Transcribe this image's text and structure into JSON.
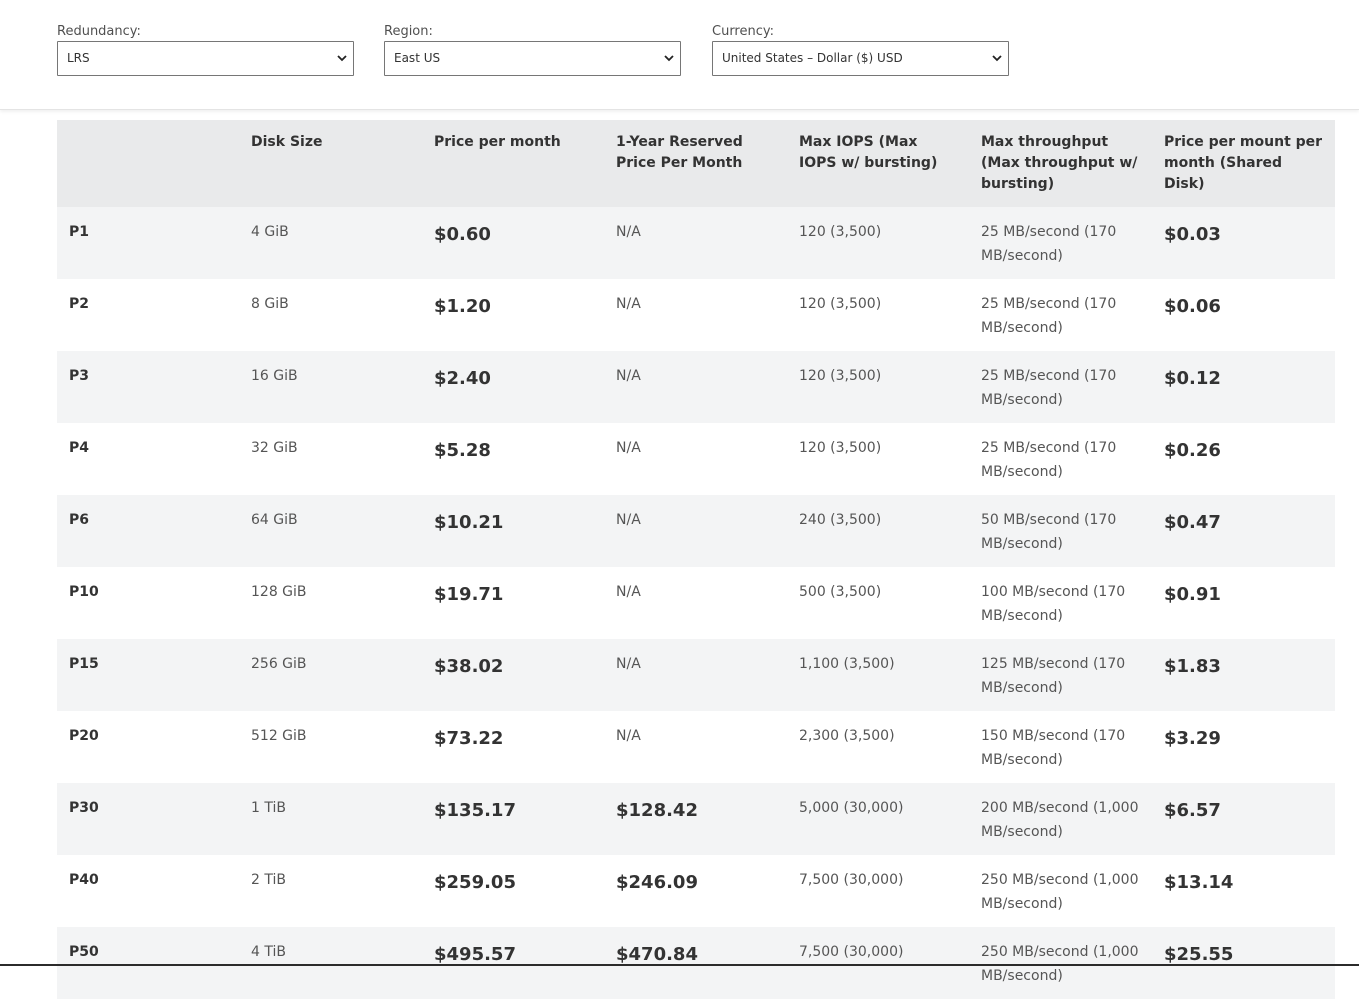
{
  "filters": {
    "redundancy": {
      "label": "Redundancy:",
      "value": "LRS"
    },
    "region": {
      "label": "Region:",
      "value": "East US"
    },
    "currency": {
      "label": "Currency:",
      "value": "United States – Dollar ($) USD"
    }
  },
  "table": {
    "headers": [
      "",
      "Disk Size",
      "Price per month",
      "1-Year Reserved Price Per Month",
      "Max IOPS (Max IOPS w/ bursting)",
      "Max throughput (Max throughput w/ bursting)",
      "Price per mount per month (Shared Disk)"
    ],
    "rows": [
      [
        "P1",
        "4 GiB",
        "$0.60",
        "N/A",
        "120 (3,500)",
        "25 MB/second (170 MB/second)",
        "$0.03"
      ],
      [
        "P2",
        "8 GiB",
        "$1.20",
        "N/A",
        "120 (3,500)",
        "25 MB/second (170 MB/second)",
        "$0.06"
      ],
      [
        "P3",
        "16 GiB",
        "$2.40",
        "N/A",
        "120 (3,500)",
        "25 MB/second (170 MB/second)",
        "$0.12"
      ],
      [
        "P4",
        "32 GiB",
        "$5.28",
        "N/A",
        "120 (3,500)",
        "25 MB/second (170 MB/second)",
        "$0.26"
      ],
      [
        "P6",
        "64 GiB",
        "$10.21",
        "N/A",
        "240 (3,500)",
        "50 MB/second (170 MB/second)",
        "$0.47"
      ],
      [
        "P10",
        "128 GiB",
        "$19.71",
        "N/A",
        "500 (3,500)",
        "100 MB/second (170 MB/second)",
        "$0.91"
      ],
      [
        "P15",
        "256 GiB",
        "$38.02",
        "N/A",
        "1,100 (3,500)",
        "125 MB/second (170 MB/second)",
        "$1.83"
      ],
      [
        "P20",
        "512 GiB",
        "$73.22",
        "N/A",
        "2,300 (3,500)",
        "150 MB/second (170 MB/second)",
        "$3.29"
      ],
      [
        "P30",
        "1 TiB",
        "$135.17",
        "$128.42",
        "5,000 (30,000)",
        "200 MB/second (1,000 MB/second)",
        "$6.57"
      ],
      [
        "P40",
        "2 TiB",
        "$259.05",
        "$246.09",
        "7,500 (30,000)",
        "250 MB/second (1,000 MB/second)",
        "$13.14"
      ],
      [
        "P50",
        "4 TiB",
        "$495.57",
        "$470.84",
        "7,500 (30,000)",
        "250 MB/second (1,000 MB/second)",
        "$25.55"
      ]
    ]
  }
}
